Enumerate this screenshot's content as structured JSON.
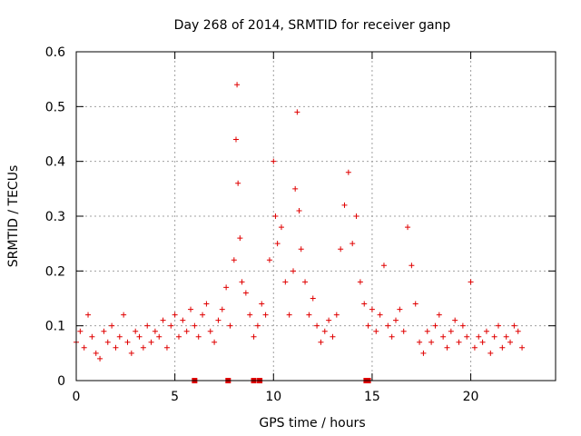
{
  "chart_data": {
    "type": "scatter",
    "title": "Day 268 of 2014, SRMTID for receiver ganp",
    "xlabel": "GPS time / hours",
    "ylabel": "SRMTID / TECUs",
    "xlim": [
      0,
      24.3
    ],
    "ylim": [
      0,
      0.6
    ],
    "x_ticks": [
      0,
      5,
      10,
      15,
      20
    ],
    "y_ticks": [
      0,
      0.1,
      0.2,
      0.3,
      0.4,
      0.5,
      0.6
    ],
    "x_tick_labels": [
      "0",
      "5",
      "10",
      "15",
      "20"
    ],
    "y_tick_labels": [
      "0",
      "0.1",
      "0.2",
      "0.3",
      "0.4",
      "0.5",
      "0.6"
    ],
    "grid": true,
    "marker": "plus",
    "color": "#e00000",
    "series": [
      {
        "name": "SRMTID",
        "x": [
          0.0,
          0.2,
          0.4,
          0.6,
          0.8,
          1.0,
          1.2,
          1.4,
          1.6,
          1.8,
          2.0,
          2.2,
          2.4,
          2.6,
          2.8,
          3.0,
          3.2,
          3.4,
          3.6,
          3.8,
          4.0,
          4.2,
          4.4,
          4.6,
          4.8,
          5.0,
          5.2,
          5.4,
          5.6,
          5.8,
          6.0,
          6.2,
          6.4,
          6.6,
          6.8,
          7.0,
          7.2,
          7.4,
          7.6,
          7.8,
          8.0,
          8.1,
          8.15,
          8.2,
          8.3,
          8.4,
          8.6,
          8.8,
          9.0,
          9.2,
          9.4,
          9.6,
          9.8,
          10.0,
          10.1,
          10.2,
          10.4,
          10.6,
          10.8,
          11.0,
          11.1,
          11.2,
          11.3,
          11.4,
          11.6,
          11.8,
          12.0,
          12.2,
          12.4,
          12.6,
          12.8,
          13.0,
          13.2,
          13.4,
          13.6,
          13.8,
          14.0,
          14.2,
          14.4,
          14.6,
          14.8,
          15.0,
          15.2,
          15.4,
          15.6,
          15.8,
          16.0,
          16.2,
          16.4,
          16.6,
          16.8,
          17.0,
          17.2,
          17.4,
          17.6,
          17.8,
          18.0,
          18.2,
          18.4,
          18.6,
          18.8,
          19.0,
          19.2,
          19.4,
          19.6,
          19.8,
          20.0,
          20.2,
          20.4,
          20.6,
          20.8,
          21.0,
          21.2,
          21.4,
          21.6,
          21.8,
          22.0,
          22.2,
          22.4,
          22.6
        ],
        "y": [
          0.07,
          0.09,
          0.06,
          0.12,
          0.08,
          0.05,
          0.04,
          0.09,
          0.07,
          0.1,
          0.06,
          0.08,
          0.12,
          0.07,
          0.05,
          0.09,
          0.08,
          0.06,
          0.1,
          0.07,
          0.09,
          0.08,
          0.11,
          0.06,
          0.1,
          0.12,
          0.08,
          0.11,
          0.09,
          0.13,
          0.1,
          0.08,
          0.12,
          0.14,
          0.09,
          0.07,
          0.11,
          0.13,
          0.17,
          0.1,
          0.22,
          0.44,
          0.54,
          0.36,
          0.26,
          0.18,
          0.16,
          0.12,
          0.08,
          0.1,
          0.14,
          0.12,
          0.22,
          0.4,
          0.3,
          0.25,
          0.28,
          0.18,
          0.12,
          0.2,
          0.35,
          0.49,
          0.31,
          0.24,
          0.18,
          0.12,
          0.15,
          0.1,
          0.07,
          0.09,
          0.11,
          0.08,
          0.12,
          0.24,
          0.32,
          0.38,
          0.25,
          0.3,
          0.18,
          0.14,
          0.1,
          0.13,
          0.09,
          0.12,
          0.21,
          0.1,
          0.08,
          0.11,
          0.13,
          0.09,
          0.28,
          0.21,
          0.14,
          0.07,
          0.05,
          0.09,
          0.07,
          0.1,
          0.12,
          0.08,
          0.06,
          0.09,
          0.11,
          0.07,
          0.1,
          0.08,
          0.18,
          0.06,
          0.08,
          0.07,
          0.09,
          0.05,
          0.08,
          0.1,
          0.06,
          0.08,
          0.07,
          0.1,
          0.09,
          0.06
        ]
      }
    ],
    "gap_markers_x": [
      6.0,
      7.7,
      9.0,
      9.3,
      14.7,
      14.8
    ]
  }
}
